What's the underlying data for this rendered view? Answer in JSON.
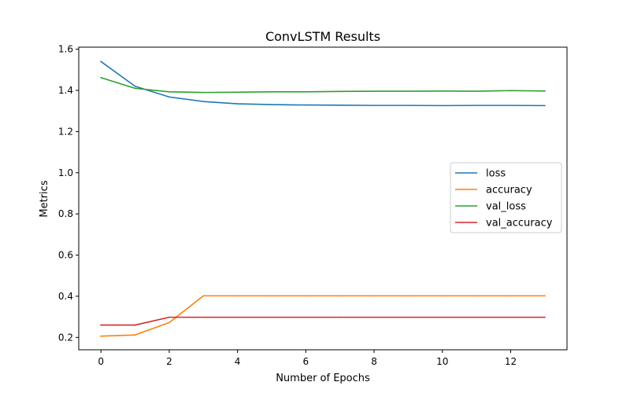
{
  "chart_data": {
    "type": "line",
    "title": "ConvLSTM Results",
    "xlabel": "Number of Epochs",
    "ylabel": "Metrics",
    "xlim": [
      -0.65,
      13.65
    ],
    "ylim": [
      0.14,
      1.61
    ],
    "xticks": [
      0,
      2,
      4,
      6,
      8,
      10,
      12
    ],
    "xtick_labels": [
      "0",
      "2",
      "4",
      "6",
      "8",
      "10",
      "12"
    ],
    "yticks": [
      0.2,
      0.4,
      0.6,
      0.8,
      1.0,
      1.2,
      1.4,
      1.6
    ],
    "ytick_labels": [
      "0.2",
      "0.4",
      "0.6",
      "0.8",
      "1.0",
      "1.2",
      "1.4",
      "1.6"
    ],
    "grid": false,
    "legend_position": "center-right",
    "x": [
      0,
      1,
      2,
      3,
      4,
      5,
      6,
      7,
      8,
      9,
      10,
      11,
      12,
      13
    ],
    "series": [
      {
        "name": "loss",
        "color": "#1f77b4",
        "values": [
          1.54,
          1.42,
          1.368,
          1.346,
          1.335,
          1.331,
          1.329,
          1.328,
          1.327,
          1.327,
          1.326,
          1.327,
          1.327,
          1.326
        ]
      },
      {
        "name": "accuracy",
        "color": "#ff7f0e",
        "values": [
          0.206,
          0.212,
          0.272,
          0.402,
          0.402,
          0.402,
          0.402,
          0.402,
          0.402,
          0.402,
          0.402,
          0.402,
          0.402,
          0.402
        ]
      },
      {
        "name": "val_loss",
        "color": "#2ca02c",
        "values": [
          1.462,
          1.41,
          1.393,
          1.39,
          1.391,
          1.393,
          1.393,
          1.395,
          1.396,
          1.396,
          1.397,
          1.396,
          1.399,
          1.397
        ]
      },
      {
        "name": "val_accuracy",
        "color": "#d62728",
        "values": [
          0.26,
          0.26,
          0.298,
          0.298,
          0.298,
          0.298,
          0.298,
          0.298,
          0.298,
          0.298,
          0.298,
          0.298,
          0.298,
          0.298
        ]
      }
    ]
  }
}
